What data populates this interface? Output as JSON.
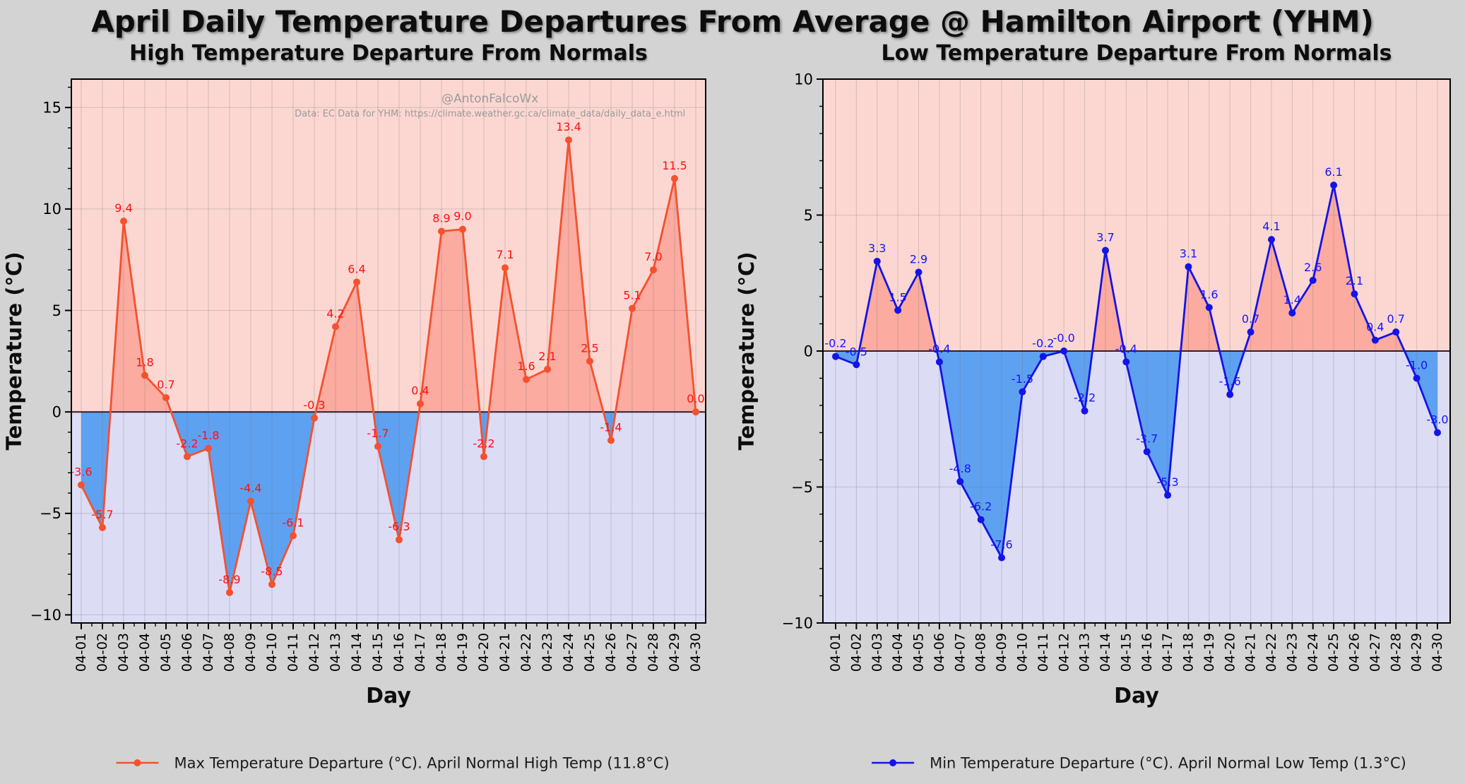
{
  "title": "April Daily Temperature Departures From Average @ Hamilton Airport (YHM)",
  "watermark": {
    "handle": "@AntonFalcoWx",
    "source": "Data: EC Data for YHM: https://climate.weather.gc.ca/climate_data/daily_data_e.html"
  },
  "colors": {
    "figure_bg": "#d3d3d3",
    "above_bg": "#fcd7d2",
    "below_bg": "#dcdcf5",
    "above_fill": "#fbaba0",
    "below_fill": "#5ea1f1",
    "grid": "rgba(110,110,110,0.28)",
    "zero_line": "#331c29",
    "axis": "#000000",
    "tick_label": "#000000",
    "legend_text": "#1a1a1a",
    "watermark_text": "#9a9a9a",
    "high_line": "#f4512e",
    "high_label": "#ff0f0f",
    "low_line": "#1414e6",
    "low_label": "#1414ff"
  },
  "chart_data": [
    {
      "id": "high",
      "type": "line",
      "title": "High Temperature Departure From Normals",
      "xlabel": "Day",
      "ylabel": "Temperature (°C)",
      "ylim": [
        -10.4,
        16.4
      ],
      "yticks": [
        -10,
        -5,
        0,
        5,
        10,
        15
      ],
      "grid": true,
      "legend_position": "bottom-center",
      "legend": "Max Temperature Departure (°C).   April Normal High Temp (11.8°C)",
      "show_watermark": true,
      "categories": [
        "04-01",
        "04-02",
        "04-03",
        "04-04",
        "04-05",
        "04-06",
        "04-07",
        "04-08",
        "04-09",
        "04-10",
        "04-11",
        "04-12",
        "04-13",
        "04-14",
        "04-15",
        "04-16",
        "04-17",
        "04-18",
        "04-19",
        "04-20",
        "04-21",
        "04-22",
        "04-23",
        "04-24",
        "04-25",
        "04-26",
        "04-27",
        "04-28",
        "04-29",
        "04-30"
      ],
      "values": [
        -3.6,
        -5.7,
        9.4,
        1.8,
        0.7,
        -2.2,
        -1.8,
        -8.9,
        -4.4,
        -8.5,
        -6.1,
        -0.3,
        4.2,
        6.4,
        -1.7,
        -6.3,
        0.4,
        8.9,
        9.0,
        -2.2,
        7.1,
        1.6,
        2.1,
        13.4,
        2.5,
        -1.4,
        5.1,
        7.0,
        11.5,
        0.0
      ],
      "labels": [
        "-3.6",
        "-5.7",
        "9.4",
        "1.8",
        "0.7",
        "-2.2",
        "-1.8",
        "-8.9",
        "-4.4",
        "-8.5",
        "-6.1",
        "-0.3",
        "4.2",
        "6.4",
        "-1.7",
        "-6.3",
        "0.4",
        "8.9",
        "9.0",
        "-2.2",
        "7.1",
        "1.6",
        "2.1",
        "13.4",
        "2.5",
        "-1.4",
        "5.1",
        "7.0",
        "11.5",
        "0.0"
      ]
    },
    {
      "id": "low",
      "type": "line",
      "title": "Low Temperature Departure From Normals",
      "xlabel": "Day",
      "ylabel": "Temperature (°C)",
      "ylim": [
        -10,
        10
      ],
      "yticks": [
        -10,
        -5,
        0,
        5,
        10
      ],
      "grid": true,
      "legend_position": "bottom-center",
      "legend": "Min Temperature Departure (°C).   April Normal Low Temp (1.3°C)",
      "show_watermark": false,
      "categories": [
        "04-01",
        "04-02",
        "04-03",
        "04-04",
        "04-05",
        "04-06",
        "04-07",
        "04-08",
        "04-09",
        "04-10",
        "04-11",
        "04-12",
        "04-13",
        "04-14",
        "04-15",
        "04-16",
        "04-17",
        "04-18",
        "04-19",
        "04-20",
        "04-21",
        "04-22",
        "04-23",
        "04-24",
        "04-25",
        "04-26",
        "04-27",
        "04-28",
        "04-29",
        "04-30"
      ],
      "values": [
        -0.2,
        -0.5,
        3.3,
        1.5,
        2.9,
        -0.4,
        -4.8,
        -6.2,
        -7.6,
        -1.5,
        -0.2,
        -0.0,
        -2.2,
        3.7,
        -0.4,
        -3.7,
        -5.3,
        3.1,
        1.6,
        -1.6,
        0.7,
        4.1,
        1.4,
        2.6,
        6.1,
        2.1,
        0.4,
        0.7,
        -1.0,
        -3.0
      ],
      "labels": [
        "-0.2",
        "-0.5",
        "3.3",
        "1.5",
        "2.9",
        "-0.4",
        "-4.8",
        "-6.2",
        "-7.6",
        "-1.5",
        "-0.2",
        "-0.0",
        "-2.2",
        "3.7",
        "-0.4",
        "-3.7",
        "-5.3",
        "3.1",
        "1.6",
        "-1.6",
        "0.7",
        "4.1",
        "1.4",
        "2.6",
        "6.1",
        "2.1",
        "0.4",
        "0.7",
        "-1.0",
        "-3.0"
      ]
    }
  ]
}
